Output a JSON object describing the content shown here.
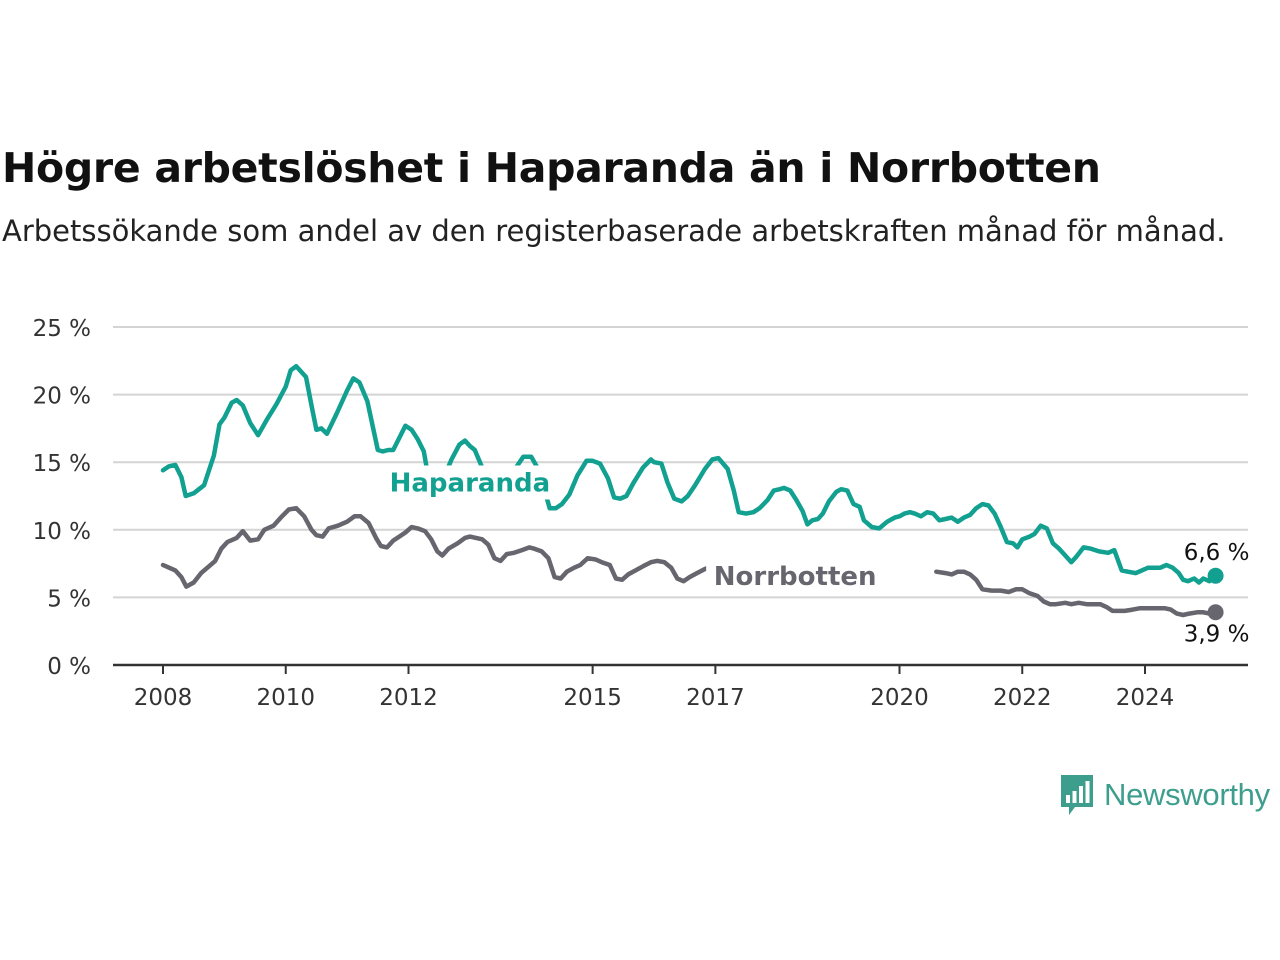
{
  "title": "Högre arbetslöshet i Haparanda än i Norrbotten",
  "subtitle": "Arbetssökande som andel av den registerbaserade arbetskraften månad för månad.",
  "brand": {
    "name": "Newsworthy",
    "color": "#3d9e8e",
    "icon": "newsworthy-chart-bubble-icon"
  },
  "chart_data": {
    "type": "line",
    "title": "Högre arbetslöshet i Haparanda än i Norrbotten",
    "subtitle": "Arbetssökande som andel av den registerbaserade arbetskraften månad för månad.",
    "xlabel": "",
    "ylabel": "",
    "xlim": [
      2008,
      2024.75
    ],
    "ylim": [
      0,
      25
    ],
    "x_ticks": [
      2008,
      2010,
      2012,
      2015,
      2017,
      2020,
      2022,
      2024
    ],
    "x_tick_labels": [
      "2008",
      "2010",
      "2012",
      "2015",
      "2017",
      "2020",
      "2022",
      "2024"
    ],
    "y_ticks": [
      0,
      5,
      10,
      15,
      20,
      25
    ],
    "y_tick_labels": [
      "0 %",
      "5 %",
      "10 %",
      "15 %",
      "20 %",
      "25 %"
    ],
    "grid": "horizontal",
    "legend": "inline labels",
    "series": [
      {
        "name": "Haparanda",
        "color": "#12a091",
        "end_label": "6,6 %",
        "points": [
          [
            2008.0,
            14.4
          ],
          [
            2008.1,
            14.7
          ],
          [
            2008.2,
            14.8
          ],
          [
            2008.3,
            13.9
          ],
          [
            2008.37,
            12.5
          ],
          [
            2008.5,
            12.7
          ],
          [
            2008.67,
            13.3
          ],
          [
            2008.83,
            15.5
          ],
          [
            2008.92,
            17.8
          ],
          [
            2009.0,
            18.3
          ],
          [
            2009.12,
            19.4
          ],
          [
            2009.2,
            19.6
          ],
          [
            2009.3,
            19.2
          ],
          [
            2009.42,
            17.9
          ],
          [
            2009.55,
            17.0
          ],
          [
            2009.7,
            18.2
          ],
          [
            2009.85,
            19.3
          ],
          [
            2010.0,
            20.6
          ],
          [
            2010.08,
            21.8
          ],
          [
            2010.17,
            22.1
          ],
          [
            2010.33,
            21.3
          ],
          [
            2010.42,
            19.2
          ],
          [
            2010.5,
            17.4
          ],
          [
            2010.58,
            17.5
          ],
          [
            2010.67,
            17.1
          ],
          [
            2010.83,
            18.6
          ],
          [
            2011.0,
            20.3
          ],
          [
            2011.1,
            21.2
          ],
          [
            2011.2,
            20.9
          ],
          [
            2011.33,
            19.5
          ],
          [
            2011.5,
            15.9
          ],
          [
            2011.58,
            15.8
          ],
          [
            2011.67,
            15.9
          ],
          [
            2011.75,
            15.9
          ],
          [
            2011.85,
            16.8
          ],
          [
            2011.95,
            17.7
          ],
          [
            2012.05,
            17.4
          ],
          [
            2012.15,
            16.7
          ],
          [
            2012.25,
            15.8
          ],
          [
            2012.35,
            13.2
          ],
          [
            2012.45,
            12.5
          ],
          [
            2012.55,
            13.6
          ],
          [
            2012.7,
            15.2
          ],
          [
            2012.83,
            16.3
          ],
          [
            2012.92,
            16.6
          ],
          [
            2013.0,
            16.2
          ],
          [
            2013.08,
            15.9
          ],
          [
            2013.2,
            14.6
          ],
          [
            2013.33,
            13.2
          ],
          [
            2013.45,
            12.6
          ],
          [
            2013.58,
            13.3
          ],
          [
            2013.75,
            14.6
          ],
          [
            2013.87,
            15.4
          ],
          [
            2014.0,
            15.4
          ],
          [
            2014.1,
            14.6
          ],
          [
            2014.2,
            13.2
          ],
          [
            2014.3,
            11.6
          ],
          [
            2014.4,
            11.6
          ],
          [
            2014.5,
            11.9
          ],
          [
            2014.62,
            12.6
          ],
          [
            2014.75,
            14.0
          ],
          [
            2014.9,
            15.1
          ],
          [
            2015.0,
            15.1
          ],
          [
            2015.12,
            14.9
          ],
          [
            2015.25,
            13.8
          ],
          [
            2015.35,
            12.4
          ],
          [
            2015.45,
            12.3
          ],
          [
            2015.55,
            12.5
          ],
          [
            2015.67,
            13.5
          ],
          [
            2015.82,
            14.6
          ],
          [
            2015.95,
            15.2
          ],
          [
            2016.0,
            15.0
          ],
          [
            2016.12,
            14.9
          ],
          [
            2016.22,
            13.5
          ],
          [
            2016.33,
            12.3
          ],
          [
            2016.45,
            12.1
          ],
          [
            2016.55,
            12.5
          ],
          [
            2016.67,
            13.3
          ],
          [
            2016.83,
            14.5
          ],
          [
            2016.95,
            15.2
          ],
          [
            2017.05,
            15.3
          ],
          [
            2017.2,
            14.5
          ],
          [
            2017.3,
            12.9
          ],
          [
            2017.38,
            11.3
          ],
          [
            2017.5,
            11.2
          ],
          [
            2017.62,
            11.3
          ],
          [
            2017.72,
            11.6
          ],
          [
            2017.85,
            12.2
          ],
          [
            2017.95,
            12.9
          ],
          [
            2018.05,
            13.0
          ],
          [
            2018.12,
            13.1
          ],
          [
            2018.22,
            12.9
          ],
          [
            2018.32,
            12.2
          ],
          [
            2018.42,
            11.4
          ],
          [
            2018.5,
            10.4
          ],
          [
            2018.58,
            10.7
          ],
          [
            2018.67,
            10.8
          ],
          [
            2018.75,
            11.2
          ],
          [
            2018.85,
            12.1
          ],
          [
            2018.97,
            12.8
          ],
          [
            2019.05,
            13.0
          ],
          [
            2019.15,
            12.9
          ],
          [
            2019.25,
            11.9
          ],
          [
            2019.35,
            11.7
          ],
          [
            2019.42,
            10.7
          ],
          [
            2019.55,
            10.2
          ],
          [
            2019.67,
            10.1
          ],
          [
            2019.8,
            10.6
          ],
          [
            2019.92,
            10.9
          ],
          [
            2020.0,
            11.0
          ],
          [
            2020.08,
            11.2
          ],
          [
            2020.17,
            11.3
          ],
          [
            2020.25,
            11.2
          ],
          [
            2020.35,
            11.0
          ],
          [
            2020.45,
            11.3
          ],
          [
            2020.55,
            11.2
          ],
          [
            2020.65,
            10.7
          ],
          [
            2020.75,
            10.8
          ],
          [
            2020.85,
            10.9
          ],
          [
            2020.95,
            10.6
          ],
          [
            2021.05,
            10.9
          ],
          [
            2021.15,
            11.1
          ],
          [
            2021.25,
            11.6
          ],
          [
            2021.35,
            11.9
          ],
          [
            2021.45,
            11.8
          ],
          [
            2021.55,
            11.2
          ],
          [
            2021.65,
            10.2
          ],
          [
            2021.75,
            9.1
          ],
          [
            2021.85,
            9.0
          ],
          [
            2021.92,
            8.7
          ],
          [
            2022.0,
            9.3
          ],
          [
            2022.12,
            9.5
          ],
          [
            2022.2,
            9.7
          ],
          [
            2022.3,
            10.3
          ],
          [
            2022.4,
            10.1
          ],
          [
            2022.5,
            9.0
          ],
          [
            2022.6,
            8.6
          ],
          [
            2022.72,
            8.0
          ],
          [
            2022.8,
            7.6
          ],
          [
            2022.88,
            8.0
          ],
          [
            2023.0,
            8.7
          ],
          [
            2023.12,
            8.6
          ],
          [
            2023.25,
            8.4
          ],
          [
            2023.4,
            8.3
          ],
          [
            2023.5,
            8.5
          ],
          [
            2023.62,
            7.0
          ],
          [
            2023.72,
            6.9
          ],
          [
            2023.85,
            6.8
          ],
          [
            2023.95,
            7.0
          ],
          [
            2024.05,
            7.2
          ],
          [
            2024.15,
            7.2
          ],
          [
            2024.25,
            7.2
          ],
          [
            2024.35,
            7.4
          ],
          [
            2024.45,
            7.2
          ],
          [
            2024.55,
            6.8
          ],
          [
            2024.62,
            6.3
          ],
          [
            2024.7,
            6.2
          ],
          [
            2024.8,
            6.4
          ],
          [
            2024.88,
            6.1
          ],
          [
            2024.95,
            6.4
          ],
          [
            2025.05,
            6.2
          ],
          [
            2025.15,
            6.6
          ]
        ]
      },
      {
        "name": "Norrbotten",
        "color": "#67666e",
        "end_label": "3,9 %",
        "points": [
          [
            2008.0,
            7.4
          ],
          [
            2008.1,
            7.2
          ],
          [
            2008.2,
            7.0
          ],
          [
            2008.3,
            6.5
          ],
          [
            2008.38,
            5.8
          ],
          [
            2008.5,
            6.1
          ],
          [
            2008.62,
            6.8
          ],
          [
            2008.75,
            7.3
          ],
          [
            2008.85,
            7.7
          ],
          [
            2008.95,
            8.6
          ],
          [
            2009.05,
            9.1
          ],
          [
            2009.2,
            9.4
          ],
          [
            2009.3,
            9.9
          ],
          [
            2009.42,
            9.2
          ],
          [
            2009.55,
            9.3
          ],
          [
            2009.65,
            10.0
          ],
          [
            2009.8,
            10.3
          ],
          [
            2009.92,
            10.9
          ],
          [
            2010.05,
            11.5
          ],
          [
            2010.17,
            11.6
          ],
          [
            2010.3,
            11.0
          ],
          [
            2010.42,
            10.0
          ],
          [
            2010.5,
            9.6
          ],
          [
            2010.6,
            9.5
          ],
          [
            2010.7,
            10.1
          ],
          [
            2010.85,
            10.3
          ],
          [
            2011.0,
            10.6
          ],
          [
            2011.12,
            11.0
          ],
          [
            2011.22,
            11.0
          ],
          [
            2011.35,
            10.5
          ],
          [
            2011.47,
            9.4
          ],
          [
            2011.55,
            8.8
          ],
          [
            2011.65,
            8.7
          ],
          [
            2011.75,
            9.2
          ],
          [
            2011.85,
            9.5
          ],
          [
            2011.95,
            9.8
          ],
          [
            2012.05,
            10.2
          ],
          [
            2012.15,
            10.1
          ],
          [
            2012.27,
            9.9
          ],
          [
            2012.37,
            9.3
          ],
          [
            2012.47,
            8.4
          ],
          [
            2012.55,
            8.1
          ],
          [
            2012.65,
            8.6
          ],
          [
            2012.8,
            9.0
          ],
          [
            2012.92,
            9.4
          ],
          [
            2013.0,
            9.5
          ],
          [
            2013.1,
            9.4
          ],
          [
            2013.2,
            9.3
          ],
          [
            2013.3,
            8.9
          ],
          [
            2013.4,
            7.9
          ],
          [
            2013.5,
            7.7
          ],
          [
            2013.6,
            8.2
          ],
          [
            2013.72,
            8.3
          ],
          [
            2013.85,
            8.5
          ],
          [
            2013.97,
            8.7
          ],
          [
            2014.05,
            8.6
          ],
          [
            2014.17,
            8.4
          ],
          [
            2014.28,
            7.9
          ],
          [
            2014.38,
            6.5
          ],
          [
            2014.48,
            6.4
          ],
          [
            2014.58,
            6.9
          ],
          [
            2014.7,
            7.2
          ],
          [
            2014.8,
            7.4
          ],
          [
            2014.92,
            7.9
          ],
          [
            2015.05,
            7.8
          ],
          [
            2015.15,
            7.6
          ],
          [
            2015.28,
            7.4
          ],
          [
            2015.38,
            6.4
          ],
          [
            2015.48,
            6.3
          ],
          [
            2015.58,
            6.7
          ],
          [
            2015.7,
            7.0
          ],
          [
            2015.82,
            7.3
          ],
          [
            2015.95,
            7.6
          ],
          [
            2016.05,
            7.7
          ],
          [
            2016.17,
            7.6
          ],
          [
            2016.28,
            7.2
          ],
          [
            2016.38,
            6.4
          ],
          [
            2016.48,
            6.2
          ],
          [
            2016.58,
            6.5
          ],
          [
            2016.7,
            6.8
          ],
          [
            2016.83,
            7.1
          ],
          [
            2016.95,
            7.3
          ],
          [
            2017.05,
            7.3
          ],
          [
            2017.15,
            7.3
          ],
          [
            2017.27,
            7.0
          ],
          [
            2017.37,
            6.1
          ],
          [
            2017.47,
            6.2
          ],
          [
            2017.57,
            6.6
          ],
          [
            2017.67,
            6.8
          ],
          [
            2020.6,
            6.9
          ],
          [
            2020.75,
            6.8
          ],
          [
            2020.85,
            6.7
          ],
          [
            2020.95,
            6.9
          ],
          [
            2021.05,
            6.9
          ],
          [
            2021.15,
            6.7
          ],
          [
            2021.25,
            6.3
          ],
          [
            2021.35,
            5.6
          ],
          [
            2021.5,
            5.5
          ],
          [
            2021.65,
            5.5
          ],
          [
            2021.78,
            5.4
          ],
          [
            2021.9,
            5.6
          ],
          [
            2022.0,
            5.6
          ],
          [
            2022.12,
            5.3
          ],
          [
            2022.25,
            5.1
          ],
          [
            2022.35,
            4.7
          ],
          [
            2022.45,
            4.5
          ],
          [
            2022.55,
            4.5
          ],
          [
            2022.7,
            4.6
          ],
          [
            2022.8,
            4.5
          ],
          [
            2022.92,
            4.6
          ],
          [
            2023.05,
            4.5
          ],
          [
            2023.15,
            4.5
          ],
          [
            2023.27,
            4.5
          ],
          [
            2023.37,
            4.3
          ],
          [
            2023.47,
            4.0
          ],
          [
            2023.57,
            4.0
          ],
          [
            2023.67,
            4.0
          ],
          [
            2023.8,
            4.1
          ],
          [
            2023.92,
            4.2
          ],
          [
            2024.05,
            4.2
          ],
          [
            2024.2,
            4.2
          ],
          [
            2024.32,
            4.2
          ],
          [
            2024.42,
            4.1
          ],
          [
            2024.52,
            3.8
          ],
          [
            2024.62,
            3.7
          ],
          [
            2024.72,
            3.8
          ],
          [
            2024.85,
            3.9
          ],
          [
            2024.95,
            3.9
          ],
          [
            2025.05,
            3.8
          ],
          [
            2025.15,
            3.9
          ]
        ]
      }
    ],
    "annotations": [
      {
        "text": "Haparanda",
        "series": "Haparanda",
        "x": 2013.0,
        "y": 13.5
      },
      {
        "text": "Norrbotten",
        "series": "Norrbotten",
        "x": 2018.3,
        "y": 6.6
      }
    ]
  }
}
